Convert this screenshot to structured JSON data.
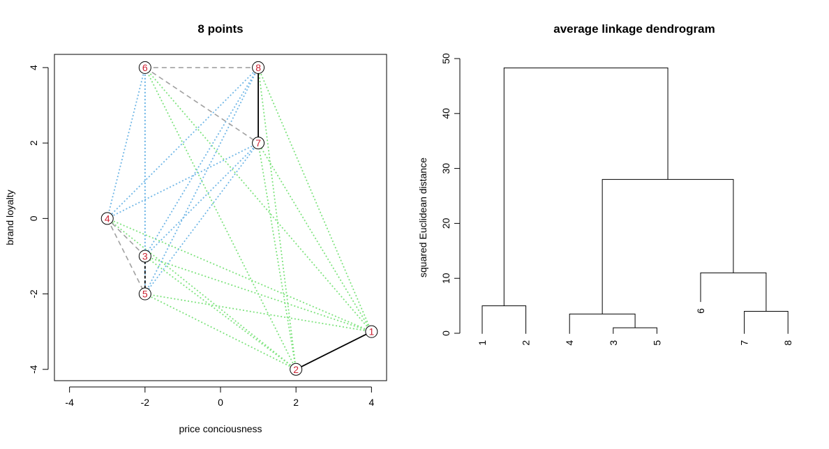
{
  "chart_data": [
    {
      "type": "scatter",
      "title": "8 points",
      "xlabel": "price conciousness",
      "ylabel": "brand loyalty",
      "xlim": [
        -4.4,
        4.4
      ],
      "ylim": [
        -4.3,
        4.35
      ],
      "xticks": [
        -4,
        -2,
        0,
        2,
        4
      ],
      "yticks": [
        -4,
        -2,
        0,
        2,
        4
      ],
      "points": [
        {
          "label": "1",
          "x": 4,
          "y": -3
        },
        {
          "label": "2",
          "x": 2,
          "y": -4
        },
        {
          "label": "3",
          "x": -2,
          "y": -1
        },
        {
          "label": "4",
          "x": -3,
          "y": 0
        },
        {
          "label": "5",
          "x": -2,
          "y": -2
        },
        {
          "label": "6",
          "x": -2,
          "y": 4
        },
        {
          "label": "7",
          "x": 1,
          "y": 2
        },
        {
          "label": "8",
          "x": 1,
          "y": 4
        }
      ],
      "edge_groups": [
        {
          "style": "solid",
          "color": "#000000",
          "pairs": [
            [
              1,
              2
            ],
            [
              7,
              8
            ]
          ]
        },
        {
          "style": "dash-black",
          "color": "#000000",
          "pairs": [
            [
              3,
              5
            ]
          ]
        },
        {
          "style": "dashed",
          "color": "#a0a0a0",
          "pairs": [
            [
              3,
              4
            ],
            [
              4,
              5
            ],
            [
              6,
              7
            ],
            [
              6,
              8
            ]
          ]
        },
        {
          "style": "dotted",
          "color": "#6fb6e6",
          "pairs": [
            [
              6,
              3
            ],
            [
              6,
              4
            ],
            [
              6,
              5
            ],
            [
              7,
              3
            ],
            [
              7,
              4
            ],
            [
              7,
              5
            ],
            [
              8,
              3
            ],
            [
              8,
              4
            ],
            [
              8,
              5
            ]
          ]
        },
        {
          "style": "dotted",
          "color": "#7ee37e",
          "pairs": [
            [
              1,
              3
            ],
            [
              1,
              4
            ],
            [
              1,
              5
            ],
            [
              1,
              6
            ],
            [
              1,
              7
            ],
            [
              1,
              8
            ],
            [
              2,
              3
            ],
            [
              2,
              4
            ],
            [
              2,
              5
            ],
            [
              2,
              6
            ],
            [
              2,
              7
            ],
            [
              2,
              8
            ]
          ]
        }
      ]
    },
    {
      "type": "dendrogram",
      "title": "average linkage dendrogram",
      "ylabel": "squared Euclidean distance",
      "ylim": [
        0,
        50
      ],
      "yticks": [
        0,
        10,
        20,
        30,
        40,
        50
      ],
      "leaf_order": [
        "1",
        "2",
        "4",
        "3",
        "5",
        "6",
        "7",
        "8"
      ],
      "merges": [
        {
          "left": "1",
          "right": "2",
          "height": 5
        },
        {
          "left": "3",
          "right": "5",
          "height": 1
        },
        {
          "left": "7",
          "right": "8",
          "height": 4
        },
        {
          "left": "4",
          "right": "[3,5]",
          "height": 3.5
        },
        {
          "left": "6",
          "right": "[7,8]",
          "height": 11
        },
        {
          "left": "[4,3,5]",
          "right": "[6,7,8]",
          "height": 28
        },
        {
          "left": "[1,2]",
          "right": "[4,3,5,6,7,8]",
          "height": 48.3
        }
      ]
    }
  ]
}
